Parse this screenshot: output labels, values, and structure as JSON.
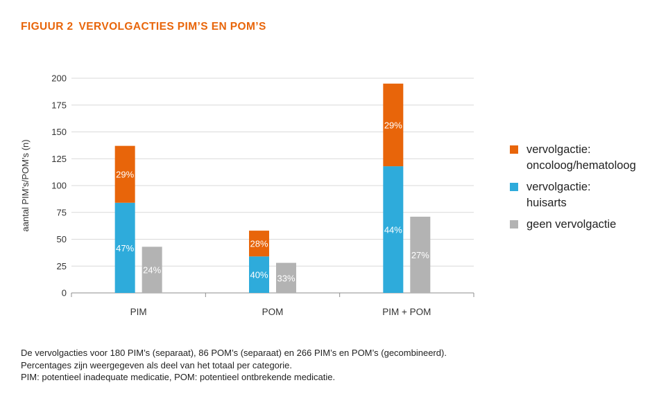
{
  "figure": {
    "number": "FIGUUR 2",
    "title": "VERVOLGACTIES PIM’S EN POM’S",
    "title_color": "#E8650A"
  },
  "chart_data": {
    "type": "bar",
    "stacked_with_side_bar": true,
    "ylabel": "aantal PIM’s/POM’s (n)",
    "xlabel": "",
    "ylim": [
      0,
      200
    ],
    "yticks": [
      0,
      25,
      50,
      75,
      100,
      125,
      150,
      175,
      200
    ],
    "categories": [
      "PIM",
      "POM",
      "PIM + POM"
    ],
    "series": [
      {
        "name": "vervolgactie: oncoloog/hematoloog",
        "color": "#E8650A",
        "stack": "vervolgactie",
        "values": [
          53,
          24,
          77
        ],
        "labels": [
          "29%",
          "28%",
          "29%"
        ]
      },
      {
        "name": "vervolgactie: huisarts",
        "color": "#2EABDB",
        "stack": "vervolgactie",
        "values": [
          84,
          34,
          118
        ],
        "labels": [
          "47%",
          "40%",
          "44%"
        ]
      },
      {
        "name": "geen vervolgactie",
        "color": "#B3B3B3",
        "stack": "geen",
        "values": [
          43,
          28,
          71
        ],
        "labels": [
          "24%",
          "33%",
          "27%"
        ]
      }
    ],
    "grid": "horizontal",
    "legend_position": "right"
  },
  "legend": {
    "items": [
      {
        "label": "vervolgactie:\noncoloog/hematoloog",
        "color": "#E8650A"
      },
      {
        "label": "vervolgactie:\nhuisarts",
        "color": "#2EABDB"
      },
      {
        "label": "geen vervolgactie",
        "color": "#B3B3B3"
      }
    ]
  },
  "footnote": {
    "line1": "De vervolgacties voor 180 PIM’s (separaat), 86 POM’s (separaat) en 266 PIM’s en POM’s (gecombineerd).",
    "line2": "Percentages zijn weergegeven als deel van het totaal per categorie.",
    "line3": "PIM: potentieel inadequate medicatie, POM: potentieel ontbrekende medicatie."
  }
}
